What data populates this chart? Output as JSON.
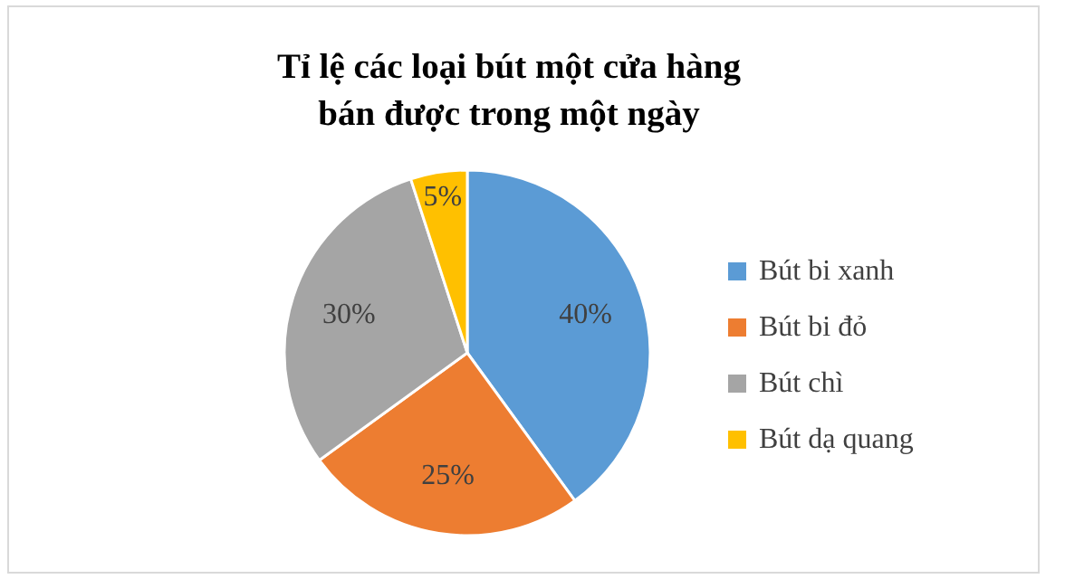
{
  "chart_data": {
    "type": "pie",
    "title": "Tỉ lệ các loại bút một cửa hàng\nbán được trong một ngày",
    "categories": [
      "Bút bi xanh",
      "Bút bi đỏ",
      "Bút chì",
      "Bút dạ quang"
    ],
    "values": [
      40,
      25,
      30,
      5
    ],
    "value_labels": [
      "40%",
      "25%",
      "30%",
      "5%"
    ],
    "colors": [
      "#5b9bd5",
      "#ed7d31",
      "#a5a5a5",
      "#ffc000"
    ],
    "legend": "right"
  }
}
